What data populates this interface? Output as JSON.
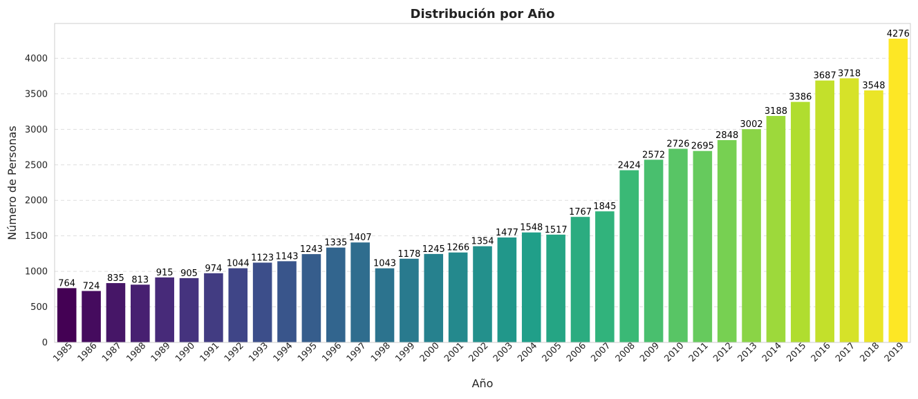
{
  "chart_data": {
    "type": "bar",
    "title": "Distribución por Año",
    "xlabel": "Año",
    "ylabel": "Número de Personas",
    "categories": [
      "1985",
      "1986",
      "1987",
      "1988",
      "1989",
      "1990",
      "1991",
      "1992",
      "1993",
      "1994",
      "1995",
      "1996",
      "1997",
      "1998",
      "1999",
      "2000",
      "2001",
      "2002",
      "2003",
      "2004",
      "2005",
      "2006",
      "2007",
      "2008",
      "2009",
      "2010",
      "2011",
      "2012",
      "2013",
      "2014",
      "2015",
      "2016",
      "2017",
      "2018",
      "2019"
    ],
    "values": [
      764,
      724,
      835,
      813,
      915,
      905,
      974,
      1044,
      1123,
      1143,
      1243,
      1335,
      1407,
      1043,
      1178,
      1245,
      1266,
      1354,
      1477,
      1548,
      1517,
      1767,
      1845,
      2424,
      2572,
      2726,
      2695,
      2848,
      3002,
      3188,
      3386,
      3687,
      3718,
      3548,
      4276
    ],
    "ylim": [
      0,
      4490
    ],
    "yticks": [
      0,
      500,
      1000,
      1500,
      2000,
      2500,
      3000,
      3500,
      4000
    ],
    "grid": "horizontal dashed",
    "colormap": "viridis",
    "colors": {
      "start": "#440154",
      "end": "#fde725",
      "grid": "#dddddd",
      "axis": "#cccccc",
      "text": "#222222"
    }
  }
}
